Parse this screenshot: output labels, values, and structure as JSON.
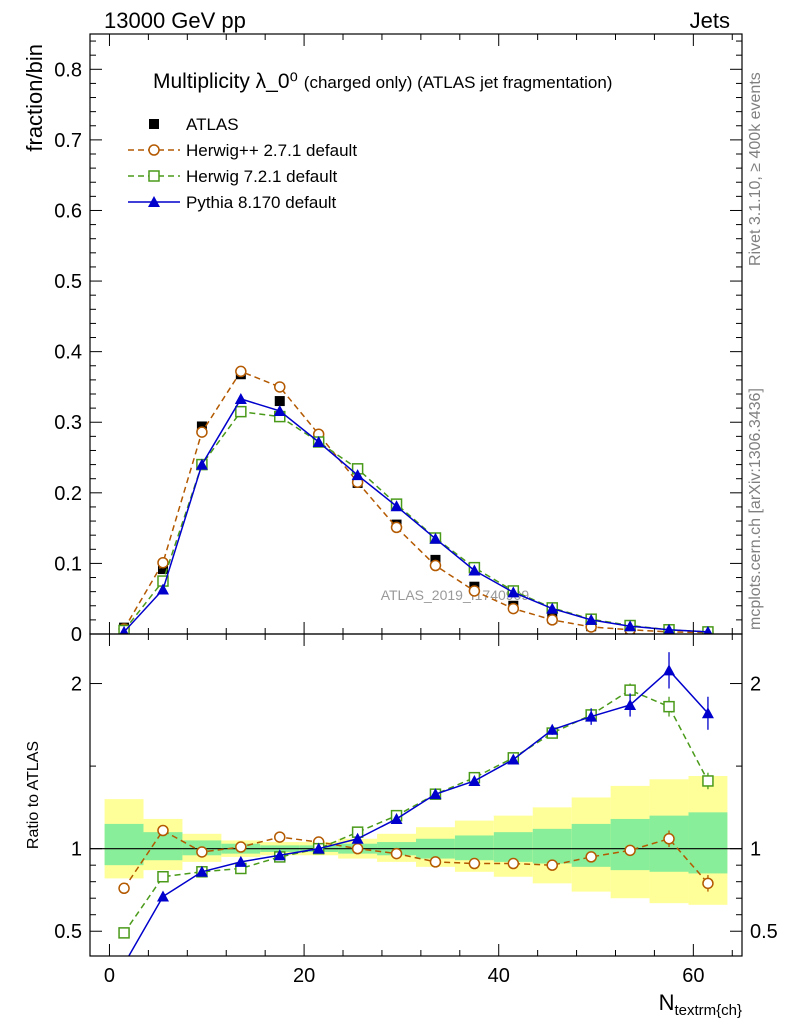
{
  "header": {
    "left": "13000 GeV pp",
    "right": "Jets"
  },
  "side_labels": {
    "rivet": "Rivet 3.1.10, ≥ 400k events",
    "mcplots": "mcplots.cern.ch [arXiv:1306.3436]"
  },
  "chart_data": [
    {
      "type": "scatter",
      "panel": "main",
      "title": "Multiplicity λ_0⁰ (charged only) (ATLAS jet fragmentation)",
      "xlabel": "N_textrm{ch}",
      "ylabel": "fraction/bin",
      "watermark": "ATLAS_2019_I1740909",
      "xlim": [
        -2,
        65
      ],
      "ylim": [
        0,
        0.85
      ],
      "yticks": [
        0,
        0.1,
        0.2,
        0.3,
        0.4,
        0.5,
        0.6,
        0.7,
        0.8
      ],
      "ytick_labels": [
        "0",
        "0.1",
        "0.2",
        "0.3",
        "0.4",
        "0.5",
        "0.6",
        "0.7",
        "0.8"
      ],
      "legend_position": "top-left",
      "x": [
        1.5,
        5.5,
        9.5,
        13.5,
        17.5,
        21.5,
        25.5,
        29.5,
        33.5,
        37.5,
        41.5,
        45.5,
        49.5,
        53.5,
        57.5,
        61.5
      ],
      "series": [
        {
          "name": "ATLAS",
          "color": "#000000",
          "marker": "filled-square",
          "line": "none",
          "values": [
            0.009,
            0.092,
            0.294,
            0.368,
            0.33,
            0.272,
            0.214,
            0.155,
            0.105,
            0.067,
            0.04,
            0.022,
            0.011,
            0.006,
            0.003,
            0.002
          ]
        },
        {
          "name": "Herwig++ 2.7.1 default",
          "color": "#b35900",
          "marker": "open-circle",
          "line": "dashed",
          "values": [
            0.007,
            0.101,
            0.286,
            0.372,
            0.35,
            0.283,
            0.215,
            0.151,
            0.097,
            0.061,
            0.036,
            0.02,
            0.01,
            0.006,
            0.003,
            0.002
          ]
        },
        {
          "name": "Herwig 7.2.1 default",
          "color": "#4a9a1a",
          "marker": "open-square",
          "line": "dashed",
          "values": [
            0.005,
            0.075,
            0.24,
            0.315,
            0.308,
            0.272,
            0.234,
            0.184,
            0.136,
            0.094,
            0.061,
            0.037,
            0.021,
            0.012,
            0.006,
            0.003
          ]
        },
        {
          "name": "Pythia 8.170 default",
          "color": "#0000cc",
          "marker": "filled-triangle",
          "line": "solid",
          "values": [
            0.003,
            0.063,
            0.24,
            0.333,
            0.316,
            0.272,
            0.225,
            0.181,
            0.135,
            0.09,
            0.059,
            0.036,
            0.02,
            0.011,
            0.006,
            0.003
          ]
        }
      ]
    },
    {
      "type": "scatter",
      "panel": "ratio",
      "ylabel": "Ratio to ATLAS",
      "xlabel": "N_textrm{ch}",
      "xlim": [
        -2,
        65
      ],
      "ylim": [
        0.35,
        2.3
      ],
      "xticks": [
        0,
        20,
        40,
        60
      ],
      "xtick_labels": [
        "0",
        "20",
        "40",
        "60"
      ],
      "yticks": [
        0.5,
        1,
        2
      ],
      "ytick_labels": [
        "0.5",
        "1",
        "2"
      ],
      "band_edges": [
        -2,
        3.5,
        7.5,
        11.5,
        15.5,
        19.5,
        23.5,
        27.5,
        31.5,
        35.5,
        39.5,
        43.5,
        47.5,
        51.5,
        55.5,
        59.5,
        64
      ],
      "band_inner": [
        [
          0.9,
          1.15
        ],
        [
          0.93,
          1.1
        ],
        [
          0.96,
          1.05
        ],
        [
          0.97,
          1.03
        ],
        [
          0.98,
          1.02
        ],
        [
          0.98,
          1.02
        ],
        [
          0.97,
          1.03
        ],
        [
          0.96,
          1.04
        ],
        [
          0.94,
          1.06
        ],
        [
          0.93,
          1.08
        ],
        [
          0.92,
          1.1
        ],
        [
          0.91,
          1.12
        ],
        [
          0.89,
          1.15
        ],
        [
          0.87,
          1.18
        ],
        [
          0.86,
          1.2
        ],
        [
          0.85,
          1.22
        ]
      ],
      "band_outer": [
        [
          0.82,
          1.3
        ],
        [
          0.87,
          1.18
        ],
        [
          0.92,
          1.09
        ],
        [
          0.95,
          1.05
        ],
        [
          0.96,
          1.04
        ],
        [
          0.96,
          1.04
        ],
        [
          0.94,
          1.06
        ],
        [
          0.92,
          1.09
        ],
        [
          0.89,
          1.13
        ],
        [
          0.86,
          1.17
        ],
        [
          0.83,
          1.2
        ],
        [
          0.79,
          1.25
        ],
        [
          0.74,
          1.31
        ],
        [
          0.7,
          1.38
        ],
        [
          0.67,
          1.42
        ],
        [
          0.66,
          1.44
        ]
      ],
      "band_colors": {
        "outer": "#ffff99",
        "inner": "#88ee99"
      },
      "x": [
        1.5,
        5.5,
        9.5,
        13.5,
        17.5,
        21.5,
        25.5,
        29.5,
        33.5,
        37.5,
        41.5,
        45.5,
        49.5,
        53.5,
        57.5,
        61.5
      ],
      "series": [
        {
          "name": "Herwig++ 2.7.1 default",
          "color": "#b35900",
          "marker": "open-circle",
          "line": "dashed",
          "values": [
            0.76,
            1.11,
            0.98,
            1.01,
            1.07,
            1.04,
            1.0,
            0.97,
            0.92,
            0.91,
            0.91,
            0.9,
            0.95,
            0.99,
            1.06,
            0.79
          ],
          "errors": [
            0.03,
            0.01,
            0.01,
            0.01,
            0.01,
            0.01,
            0.01,
            0.01,
            0.01,
            0.01,
            0.01,
            0.02,
            0.02,
            0.03,
            0.05,
            0.05
          ]
        },
        {
          "name": "Herwig 7.2.1 default",
          "color": "#4a9a1a",
          "marker": "open-square",
          "line": "dashed",
          "values": [
            0.49,
            0.83,
            0.86,
            0.88,
            0.95,
            1.0,
            1.1,
            1.2,
            1.33,
            1.43,
            1.55,
            1.7,
            1.81,
            1.96,
            1.86,
            1.41
          ],
          "errors": [
            0.03,
            0.01,
            0.01,
            0.01,
            0.01,
            0.01,
            0.01,
            0.01,
            0.01,
            0.01,
            0.02,
            0.02,
            0.03,
            0.04,
            0.06,
            0.05
          ]
        },
        {
          "name": "Pythia 8.170 default",
          "color": "#0000cc",
          "marker": "filled-triangle",
          "line": "solid",
          "values": [
            0.3,
            0.71,
            0.86,
            0.92,
            0.96,
            1.0,
            1.06,
            1.18,
            1.33,
            1.41,
            1.54,
            1.72,
            1.8,
            1.87,
            2.08,
            1.82
          ],
          "errors": [
            0.03,
            0.01,
            0.01,
            0.01,
            0.01,
            0.01,
            0.01,
            0.01,
            0.01,
            0.01,
            0.02,
            0.03,
            0.05,
            0.07,
            0.11,
            0.1
          ]
        }
      ]
    }
  ]
}
